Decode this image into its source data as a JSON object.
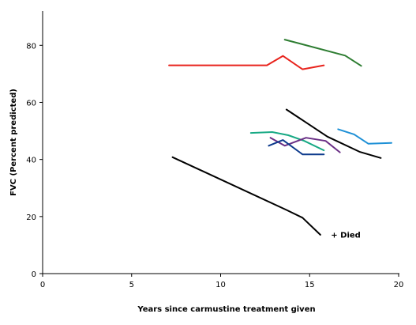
{
  "chart_data": {
    "type": "line",
    "title": "",
    "xlabel": "Years since carmustine treatment given",
    "ylabel": "FVC (Percent predicted)",
    "xlim": [
      0,
      20
    ],
    "ylim": [
      0,
      92
    ],
    "xticks": [
      0,
      5,
      10,
      15,
      20
    ],
    "yticks": [
      0,
      20,
      40,
      60,
      80
    ],
    "grid": false,
    "legend": "none",
    "series": [
      {
        "color": "#2e7d32",
        "x": [
          13.6,
          17.0,
          17.9
        ],
        "y": [
          82.0,
          76.4,
          72.8
        ]
      },
      {
        "color": "#e8231c",
        "x": [
          7.1,
          12.6,
          13.5,
          14.6,
          15.8
        ],
        "y": [
          73.0,
          73.0,
          76.3,
          71.6,
          73.0
        ]
      },
      {
        "color": "#000000",
        "x": [
          13.7,
          16.0,
          17.8,
          19.0
        ],
        "y": [
          57.5,
          48.0,
          42.7,
          40.5
        ]
      },
      {
        "color": "#1e90d6",
        "x": [
          16.6,
          17.5,
          18.3,
          19.6
        ],
        "y": [
          50.6,
          48.8,
          45.5,
          45.8
        ]
      },
      {
        "color": "#17a984",
        "x": [
          11.7,
          12.9,
          13.8,
          14.7,
          15.8
        ],
        "y": [
          49.3,
          49.6,
          48.5,
          46.5,
          43.2
        ]
      },
      {
        "color": "#6a2f86",
        "x": [
          12.8,
          13.6,
          14.8,
          15.9,
          16.7
        ],
        "y": [
          47.6,
          44.8,
          47.6,
          46.5,
          42.5
        ]
      },
      {
        "color": "#0d3a8c",
        "x": [
          12.7,
          13.5,
          14.6,
          15.8
        ],
        "y": [
          44.8,
          46.8,
          41.8,
          41.8
        ]
      },
      {
        "color": "#000000",
        "x": [
          7.3,
          13.7,
          14.6,
          15.6
        ],
        "y": [
          40.8,
          22.3,
          19.6,
          13.6
        ]
      }
    ],
    "annotations": [
      {
        "text": "+ Died",
        "x": 16.2,
        "y": 11.5
      }
    ]
  }
}
